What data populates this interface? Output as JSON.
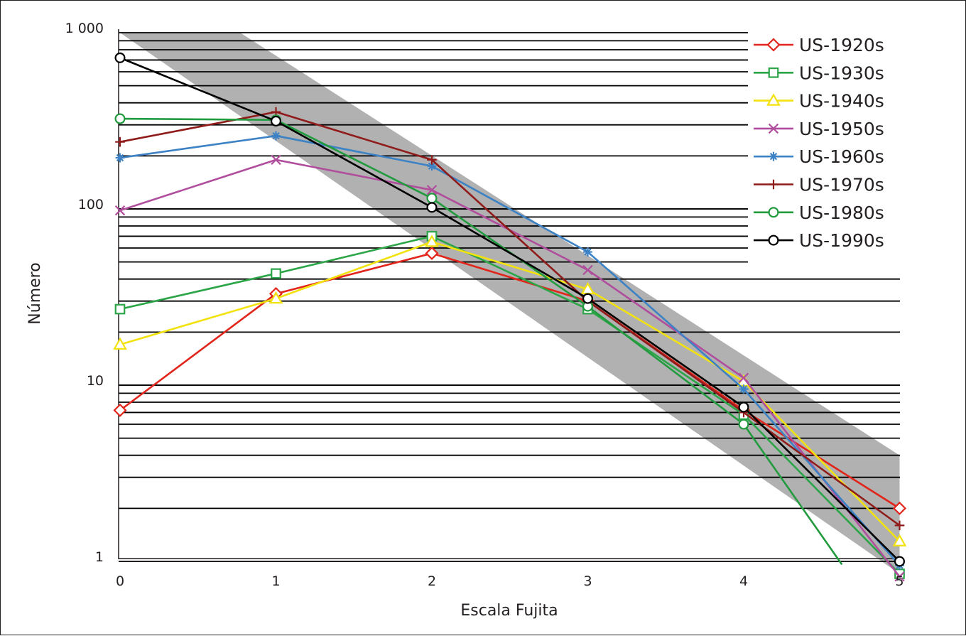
{
  "chart_data": {
    "type": "line",
    "xlabel": "Escala Fujita",
    "ylabel": "Número",
    "x": [
      0,
      1,
      2,
      3,
      4,
      5
    ],
    "x_tick_labels": [
      "0",
      "1",
      "2",
      "3",
      "4",
      "5"
    ],
    "y_scale": "log",
    "ylim": [
      1,
      1000
    ],
    "y_tick_labels": [
      "1",
      "10",
      "100",
      "1 000"
    ],
    "grid": "horizontal gridlines at every integer multiple within each decade",
    "legend_position": "top-right",
    "band": {
      "description": "grey shaded band",
      "color": "#b1b1b1",
      "upper": [
        [
          0,
          1000
        ],
        [
          0.77,
          1000
        ],
        [
          5,
          4
        ]
      ],
      "lower": [
        [
          0,
          1000
        ],
        [
          5,
          0.85
        ]
      ]
    },
    "series": [
      {
        "name": "US-1920s",
        "color": "#e1251b",
        "marker": "diamond",
        "values": [
          7.2,
          33,
          56,
          30,
          7.2,
          2
        ]
      },
      {
        "name": "US-1930s",
        "color": "#2ca548",
        "marker": "square",
        "values": [
          27,
          43,
          70,
          27,
          6.8,
          0.85
        ]
      },
      {
        "name": "US-1940s",
        "color": "#f2e20f",
        "marker": "triangle",
        "values": [
          17,
          31,
          65,
          35,
          10.5,
          1.3
        ]
      },
      {
        "name": "US-1950s",
        "color": "#b04d9c",
        "marker": "x",
        "values": [
          98,
          190,
          128,
          45,
          11,
          0.82
        ]
      },
      {
        "name": "US-1960s",
        "color": "#3c82c4",
        "marker": "asterisk",
        "values": [
          195,
          260,
          175,
          57,
          9.5,
          0.95
        ]
      },
      {
        "name": "US-1970s",
        "color": "#8f1c1b",
        "marker": "plus",
        "values": [
          240,
          355,
          190,
          30,
          7,
          1.6
        ]
      },
      {
        "name": "US-1980s",
        "color": "#229b3f",
        "marker": "circle",
        "values": [
          325,
          320,
          115,
          28,
          6,
          null
        ],
        "tail_to": [
          4.63,
          0.96
        ]
      },
      {
        "name": "US-1990s",
        "color": "#000000",
        "marker": "circle",
        "values": [
          720,
          315,
          102,
          31,
          7.5,
          1
        ]
      }
    ]
  }
}
